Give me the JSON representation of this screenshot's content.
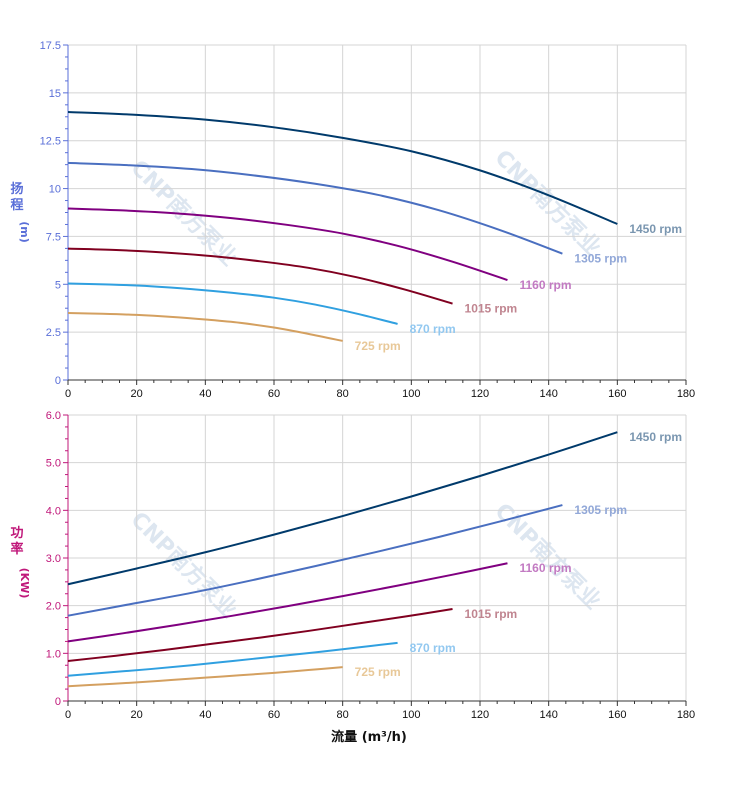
{
  "watermark": "CNP南方泵业",
  "chart_data": [
    {
      "type": "line",
      "ylabel": [
        "扬",
        "程",
        "(m)"
      ],
      "xlim": [
        0,
        180
      ],
      "ylim": [
        0,
        17.5
      ],
      "xticks": [
        "0",
        "20",
        "40",
        "60",
        "80",
        "100",
        "120",
        "140",
        "160",
        "180"
      ],
      "yticks": [
        "0",
        "2.5",
        "5",
        "7.5",
        "10",
        "12.5",
        "15",
        "17.5"
      ],
      "ytick_values": [
        0,
        2.5,
        5,
        7.5,
        10,
        12.5,
        15,
        17.5
      ],
      "tick_color": "#5a6fd8",
      "grid": true,
      "series": [
        {
          "name": "1450 rpm",
          "color": "#003a6b",
          "label_color": "#7a96b0",
          "x": [
            0,
            20,
            40,
            60,
            80,
            100,
            120,
            140,
            160
          ],
          "y": [
            14.0,
            13.85,
            13.6,
            13.2,
            12.65,
            11.95,
            10.95,
            9.65,
            8.15
          ]
        },
        {
          "name": "1305 rpm",
          "color": "#4a6fc0",
          "label_color": "#92a8d8",
          "x": [
            0,
            18,
            36,
            54,
            72,
            90,
            108,
            126,
            144
          ],
          "y": [
            11.34,
            11.22,
            11.02,
            10.69,
            10.25,
            9.68,
            8.87,
            7.82,
            6.6
          ]
        },
        {
          "name": "1160 rpm",
          "color": "#800080",
          "label_color": "#c27ac2",
          "x": [
            0,
            16,
            32,
            48,
            64,
            80,
            96,
            112,
            128
          ],
          "y": [
            8.96,
            8.86,
            8.7,
            8.45,
            8.1,
            7.65,
            7.01,
            6.18,
            5.22
          ]
        },
        {
          "name": "1015 rpm",
          "color": "#800020",
          "label_color": "#c08590",
          "x": [
            0,
            14,
            28,
            42,
            56,
            70,
            84,
            98,
            112
          ],
          "y": [
            6.86,
            6.79,
            6.66,
            6.47,
            6.2,
            5.86,
            5.37,
            4.73,
            3.99
          ]
        },
        {
          "name": "870 rpm",
          "color": "#30a0e0",
          "label_color": "#92c8f0",
          "x": [
            0,
            12,
            24,
            36,
            48,
            60,
            72,
            84,
            96
          ],
          "y": [
            5.04,
            4.99,
            4.9,
            4.75,
            4.55,
            4.3,
            3.94,
            3.47,
            2.93
          ]
        },
        {
          "name": "725 rpm",
          "color": "#d4a060",
          "label_color": "#e8c898",
          "x": [
            0,
            10,
            20,
            30,
            40,
            50,
            60,
            70,
            80
          ],
          "y": [
            3.5,
            3.46,
            3.4,
            3.3,
            3.16,
            2.99,
            2.74,
            2.41,
            2.04
          ]
        }
      ]
    },
    {
      "type": "line",
      "ylabel": [
        "功",
        "率",
        "(KW)"
      ],
      "xlabel": "流量 (m³/h)",
      "xlim": [
        0,
        180
      ],
      "ylim": [
        0,
        6
      ],
      "xticks": [
        "0",
        "20",
        "40",
        "60",
        "80",
        "100",
        "120",
        "140",
        "160",
        "180"
      ],
      "yticks": [
        "0",
        "1.0",
        "2.0",
        "3.0",
        "4.0",
        "5.0",
        "6.0"
      ],
      "ytick_values": [
        0,
        1,
        2,
        3,
        4,
        5,
        6
      ],
      "tick_color": "#c0187a",
      "grid": true,
      "series": [
        {
          "name": "1450 rpm",
          "color": "#003a6b",
          "label_color": "#7a96b0",
          "x": [
            0,
            20,
            40,
            60,
            80,
            100,
            120,
            140,
            160
          ],
          "y": [
            2.45,
            2.78,
            3.12,
            3.49,
            3.88,
            4.29,
            4.72,
            5.17,
            5.64
          ]
        },
        {
          "name": "1305 rpm",
          "color": "#4a6fc0",
          "label_color": "#92a8d8",
          "x": [
            0,
            18,
            36,
            54,
            72,
            90,
            108,
            126,
            144
          ],
          "y": [
            1.79,
            2.03,
            2.27,
            2.54,
            2.83,
            3.13,
            3.44,
            3.77,
            4.11
          ]
        },
        {
          "name": "1160 rpm",
          "color": "#800080",
          "label_color": "#c27ac2",
          "x": [
            0,
            16,
            32,
            48,
            64,
            80,
            96,
            112,
            128
          ],
          "y": [
            1.25,
            1.42,
            1.6,
            1.79,
            1.99,
            2.2,
            2.42,
            2.65,
            2.89
          ]
        },
        {
          "name": "1015 rpm",
          "color": "#800020",
          "label_color": "#c08590",
          "x": [
            0,
            14,
            28,
            42,
            56,
            70,
            84,
            98,
            112
          ],
          "y": [
            0.84,
            0.95,
            1.07,
            1.2,
            1.33,
            1.47,
            1.62,
            1.77,
            1.93
          ]
        },
        {
          "name": "870 rpm",
          "color": "#30a0e0",
          "label_color": "#92c8f0",
          "x": [
            0,
            12,
            24,
            36,
            48,
            60,
            72,
            84,
            96
          ],
          "y": [
            0.53,
            0.6,
            0.67,
            0.75,
            0.84,
            0.93,
            1.02,
            1.12,
            1.22
          ]
        },
        {
          "name": "725 rpm",
          "color": "#d4a060",
          "label_color": "#e8c898",
          "x": [
            0,
            10,
            20,
            30,
            40,
            50,
            60,
            70,
            80
          ],
          "y": [
            0.31,
            0.35,
            0.39,
            0.44,
            0.49,
            0.54,
            0.59,
            0.65,
            0.71
          ]
        }
      ]
    }
  ]
}
